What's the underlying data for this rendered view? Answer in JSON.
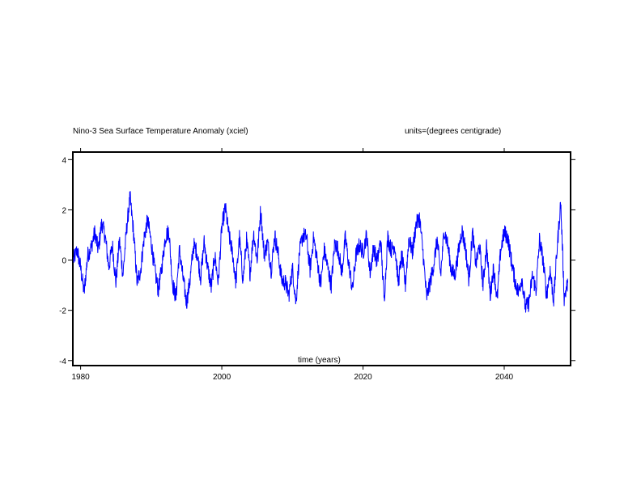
{
  "chart_data": {
    "type": "line",
    "title": "Nino-3 Sea Surface Temperature Anomaly (xciel)",
    "units_label": "units=(degrees centigrade)",
    "xlabel": "time (years)",
    "ylabel": "",
    "xlim": [
      1978.9,
      2049.4
    ],
    "ylim": [
      -4.2,
      4.3
    ],
    "x_ticks": [
      1980,
      2000,
      2020,
      2040
    ],
    "y_ticks": [
      -4,
      -2,
      0,
      2,
      4
    ],
    "grid": false,
    "series": [
      {
        "color": "#0000ff",
        "x": [
          1979,
          1979.5,
          1980,
          1980.5,
          1981,
          1981.5,
          1982,
          1982.5,
          1983,
          1983.5,
          1984,
          1984.5,
          1985,
          1985.5,
          1986,
          1986.5,
          1987,
          1987.5,
          1988,
          1988.5,
          1989,
          1989.5,
          1990,
          1990.5,
          1991,
          1991.5,
          1992,
          1992.5,
          1993,
          1993.5,
          1994,
          1994.5,
          1995,
          1995.5,
          1996,
          1996.5,
          1997,
          1997.5,
          1998,
          1998.5,
          1999,
          1999.5,
          2000,
          2000.5,
          2001,
          2001.5,
          2002,
          2002.5,
          2003,
          2003.5,
          2004,
          2004.5,
          2005,
          2005.5,
          2006,
          2006.5,
          2007,
          2007.5,
          2008,
          2008.5,
          2009,
          2009.5,
          2010,
          2010.5,
          2011,
          2011.5,
          2012,
          2012.5,
          2013,
          2013.5,
          2014,
          2014.5,
          2015,
          2015.5,
          2016,
          2016.5,
          2017,
          2017.5,
          2018,
          2018.5,
          2019,
          2019.5,
          2020,
          2020.5,
          2021,
          2021.5,
          2022,
          2022.5,
          2023,
          2023.5,
          2024,
          2024.5,
          2025,
          2025.5,
          2026,
          2026.5,
          2027,
          2027.5,
          2028,
          2028.5,
          2029,
          2029.5,
          2030,
          2030.5,
          2031,
          2031.5,
          2032,
          2032.5,
          2033,
          2033.5,
          2034,
          2034.5,
          2035,
          2035.5,
          2036,
          2036.5,
          2037,
          2037.5,
          2038,
          2038.5,
          2039,
          2039.5,
          2040,
          2040.5,
          2041,
          2041.5,
          2042,
          2042.5,
          2043,
          2043.5,
          2044,
          2044.5,
          2045,
          2045.5,
          2046,
          2046.5,
          2047,
          2047.5,
          2048,
          2048.5,
          2049
        ],
        "y": [
          0.0,
          0.4,
          -0.3,
          -1.3,
          0.2,
          0.5,
          1.1,
          0.4,
          1.5,
          0.9,
          -0.3,
          0.6,
          -0.9,
          0.8,
          -0.6,
          1.2,
          2.5,
          1.1,
          -0.9,
          -0.4,
          0.9,
          1.6,
          0.7,
          -0.4,
          -1.2,
          -0.3,
          0.9,
          1.2,
          -0.9,
          -1.5,
          0.4,
          -0.7,
          -1.7,
          -0.8,
          0.6,
          0.3,
          -0.7,
          0.7,
          -0.3,
          -1.1,
          0.2,
          -0.9,
          1.3,
          2.1,
          1.0,
          0.3,
          -0.9,
          0.9,
          -0.8,
          0.8,
          -0.5,
          1.1,
          0.0,
          2.0,
          0.2,
          0.7,
          -0.4,
          1.0,
          0.2,
          -0.8,
          -0.9,
          -1.4,
          -0.3,
          -1.7,
          0.3,
          1.0,
          0.9,
          -0.4,
          0.9,
          0.0,
          -1.0,
          0.4,
          -0.3,
          -1.0,
          0.7,
          0.4,
          -0.5,
          0.9,
          -0.2,
          -1.2,
          0.2,
          0.6,
          0.3,
          1.0,
          -0.5,
          0.5,
          -0.1,
          0.8,
          -1.6,
          0.9,
          0.4,
          0.6,
          -0.9,
          0.2,
          -1.0,
          0.9,
          0.3,
          1.4,
          1.7,
          0.3,
          -1.5,
          -0.9,
          -0.2,
          0.8,
          -0.6,
          1.2,
          0.6,
          -0.4,
          -0.6,
          0.3,
          1.2,
          0.5,
          -0.8,
          1.1,
          -0.2,
          0.6,
          -1.0,
          0.6,
          -1.4,
          -0.3,
          -1.6,
          0.4,
          1.1,
          0.9,
          0.0,
          -0.8,
          -1.3,
          -0.7,
          -1.9,
          -1.7,
          -0.6,
          -1.2,
          0.8,
          0.0,
          -1.4,
          -0.4,
          -1.6,
          0.5,
          2.3,
          -1.5,
          -0.9
        ]
      }
    ]
  }
}
